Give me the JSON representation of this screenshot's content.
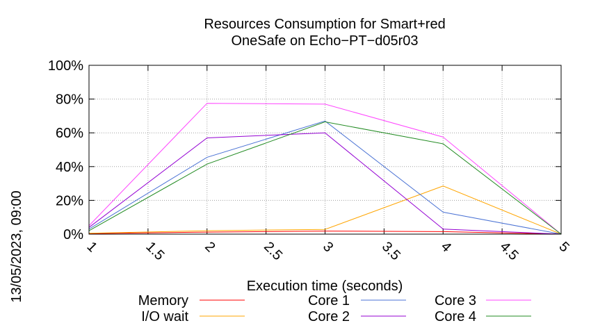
{
  "chart_data": {
    "type": "line",
    "title": [
      "Resources Consumption for Smart+red",
      "OneSafe on Echo−PT−d05r03"
    ],
    "xlabel": "Execution time (seconds)",
    "side_label": "13/05/2023, 09:00",
    "xlim": [
      1,
      5
    ],
    "ylim": [
      0,
      100
    ],
    "x_ticks": [
      1,
      1.5,
      2,
      2.5,
      3,
      3.5,
      4,
      4.5,
      5
    ],
    "x_tick_labels": [
      "1",
      "1.5",
      "2",
      "2.5",
      "3",
      "3.5",
      "4",
      "4.5",
      "5"
    ],
    "y_ticks": [
      0,
      20,
      40,
      60,
      80,
      100
    ],
    "y_tick_labels": [
      "0%",
      "20%",
      "40%",
      "60%",
      "80%",
      "100%"
    ],
    "grid": true,
    "legend_position": "bottom",
    "x": [
      1,
      2,
      3,
      4,
      5
    ],
    "series": [
      {
        "name": "Memory",
        "color": "#ff0000",
        "values": [
          0.3,
          1.2,
          1.8,
          1.5,
          0
        ]
      },
      {
        "name": "I/O wait",
        "color": "#ffa500",
        "values": [
          0.5,
          2.0,
          2.8,
          28.5,
          0
        ]
      },
      {
        "name": "Core 1",
        "color": "#4a72d4",
        "values": [
          3,
          45.5,
          67,
          13,
          0
        ]
      },
      {
        "name": "Core 2",
        "color": "#9400d3",
        "values": [
          4,
          57,
          60,
          3,
          0
        ]
      },
      {
        "name": "Core 3",
        "color": "#ff44ff",
        "values": [
          5,
          77.5,
          77,
          57.5,
          0
        ]
      },
      {
        "name": "Core 4",
        "color": "#228b22",
        "values": [
          2,
          41.5,
          66.5,
          53.5,
          0
        ]
      }
    ]
  }
}
